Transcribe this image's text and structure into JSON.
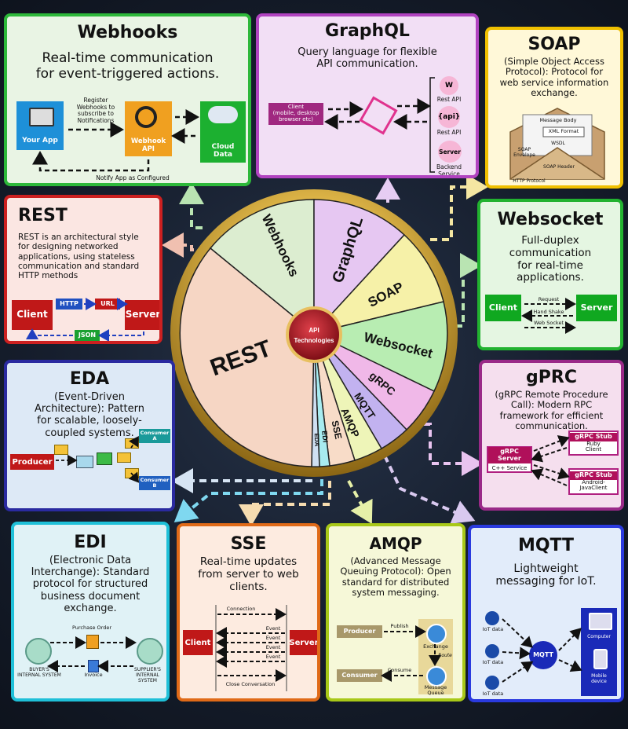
{
  "wheel": {
    "center": "API\nTechnologies",
    "slices": [
      "Webhooks",
      "GraphQL",
      "SOAP",
      "Websocket",
      "gRPC",
      "MQTT",
      "AMQP",
      "SSE",
      "EDI",
      "EDA",
      "REST"
    ]
  },
  "webhooks": {
    "title": "Webhooks",
    "desc": "Real-time communication\nfor event-triggered actions.",
    "your_app": "Your App",
    "register": "Register\nWebhooks to\nsubscribe to\nNotifications",
    "webhook_api": "Webhook\nAPI",
    "cloud_data": "Cloud\nData",
    "notify": "Notify App as Configured"
  },
  "graphql": {
    "title": "GraphQL",
    "desc": "Query language for flexible\nAPI communication.",
    "client": "Client\n(mobile, desktop\nbrowser etc)",
    "rest_api_1": "Rest API",
    "api_icon": "{api}",
    "rest_api_2": "Rest API",
    "server": "Server",
    "backend": "Backend\nService",
    "w_icon": "W"
  },
  "soap": {
    "title": "SOAP",
    "desc": "(Simple Object Access\nProtocol): Protocol for\nweb service information\nexchange.",
    "message_body": "Message Body",
    "xml_format": "XML Format",
    "wsdl": "WSDL",
    "envelope": "SOAP\nEnvelope",
    "header": "SOAP Header",
    "http_protocol": "HTTP Protocol"
  },
  "rest": {
    "title": "REST",
    "desc": "REST is an architectural style\nfor designing networked\napplications, using stateless\ncommunication and standard\nHTTP methods",
    "client": "Client",
    "http": "HTTP",
    "url": "URL",
    "server": "Server",
    "json": "JSON"
  },
  "websocket": {
    "title": "Websocket",
    "desc": "Full-duplex\ncommunication\nfor real-time\napplications.",
    "client": "Client",
    "server": "Server",
    "request": "Request",
    "handshake": "Hand Shake",
    "websocket": "Web Socket"
  },
  "eda": {
    "title": "EDA",
    "desc": "(Event-Driven\nArchitecture): Pattern\nfor scalable, loosely-\ncoupled systems.",
    "producer": "Producer",
    "consumer_a": "Consumer\nA",
    "consumer_b": "Consumer\nB"
  },
  "grpc": {
    "title": "gPRC",
    "desc": "(gRPC Remote Procedure\nCall): Modern RPC\nframework for efficient\ncommunication.",
    "server": "gRPC Server",
    "cpp_service": "C++ Service",
    "stub1": "gRPC Stub",
    "ruby": "Ruby\nClient",
    "stub2": "gRPC Stub",
    "android": "Android-\nJavaClient"
  },
  "edi": {
    "title": "EDI",
    "desc": "(Electronic Data\nInterchange): Standard\nprotocol for structured\nbusiness document\nexchange.",
    "purchase_order": "Purchase Order",
    "invoice": "Invoice",
    "buyer": "BUYER'S\nINTERNAL SYSTEM",
    "supplier": "SUPPLIER'S\nINTERNAL\nSYSTEM"
  },
  "sse": {
    "title": "SSE",
    "desc": "Real-time updates\nfrom server to web\nclients.",
    "client": "Client",
    "server": "Server",
    "connection": "Connection",
    "event": "Event",
    "close": "Close Conversation"
  },
  "amqp": {
    "title": "AMQP",
    "desc": "(Advanced Message\nQueuing Protocol): Open\nstandard for distributed\nsystem messaging.",
    "producer": "Producer",
    "consumer": "Consumer",
    "publish": "Publish",
    "consume": "Consume",
    "exchange": "Exchange",
    "route": "Route",
    "queue": "Message\nQueue"
  },
  "mqtt": {
    "title": "MQTT",
    "desc": "Lightweight\nmessaging for IoT.",
    "hub": "MQTT",
    "iot1": "IoT data",
    "iot2": "IoT data",
    "iot3": "IoT data",
    "computer": "Computer",
    "mobile": "Mobile\ndevice"
  }
}
